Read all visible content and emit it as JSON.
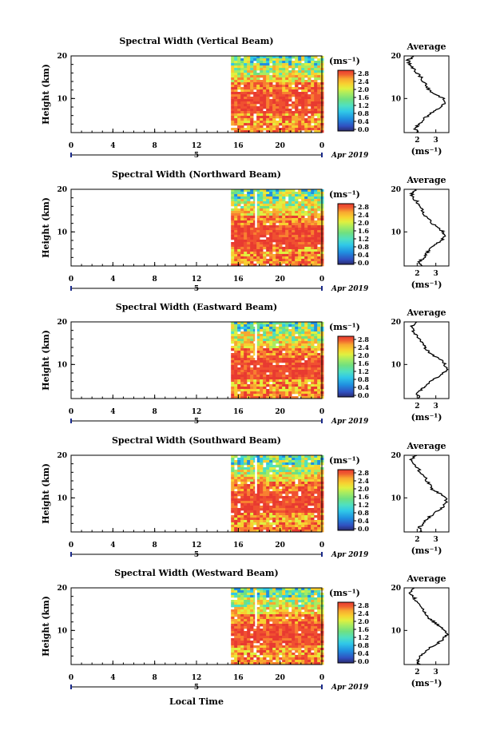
{
  "chart_data": [
    {
      "type": "heatmap",
      "title": "Spectral Width (Vertical Beam)",
      "ylabel": "Height (km)",
      "yticks": [
        "20",
        "10"
      ],
      "xticks": [
        "0",
        "4",
        "8",
        "12",
        "16",
        "20",
        "0"
      ],
      "day_label": "5",
      "date_label": "Apr 2019",
      "xlim": [
        0,
        24
      ],
      "ylim": [
        2,
        20
      ],
      "data_start_hour": 15.3,
      "colorbar_unit": "(ms⁻¹)",
      "colorbar_ticks": [
        "2.8",
        "2.4",
        "2.0",
        "1.6",
        "1.2",
        "0.8",
        "0.4",
        "0.0"
      ],
      "profile": {
        "title": "Average",
        "xlabel": "(ms⁻¹)",
        "xticks": [
          "2",
          "3"
        ],
        "xlim": [
          1.3,
          3.7
        ],
        "yticks": [
          "20",
          "10"
        ],
        "heights": [
          2,
          3,
          4,
          5,
          6,
          7,
          8,
          9,
          10,
          11,
          12,
          13,
          14,
          15,
          16,
          17,
          18,
          19,
          20
        ],
        "values": [
          2.0,
          1.9,
          2.1,
          2.3,
          2.6,
          2.9,
          3.3,
          3.5,
          3.4,
          3.0,
          2.6,
          2.5,
          2.3,
          2.2,
          2.0,
          1.8,
          1.6,
          1.5,
          1.9
        ]
      }
    },
    {
      "type": "heatmap",
      "title": "Spectral Width (Northward Beam)",
      "ylabel": "Height (km)",
      "yticks": [
        "20",
        "10"
      ],
      "xticks": [
        "0",
        "4",
        "8",
        "12",
        "16",
        "20",
        "0"
      ],
      "day_label": "5",
      "date_label": "Apr 2019",
      "xlim": [
        0,
        24
      ],
      "ylim": [
        2,
        20
      ],
      "data_start_hour": 15.3,
      "colorbar_unit": "(ms⁻¹)",
      "colorbar_ticks": [
        "2.8",
        "2.4",
        "2.0",
        "1.6",
        "1.2",
        "0.8",
        "0.4",
        "0.0"
      ],
      "profile": {
        "title": "Average",
        "xlabel": "(ms⁻¹)",
        "xticks": [
          "2",
          "3"
        ],
        "xlim": [
          1.3,
          3.7
        ],
        "yticks": [
          "20",
          "10"
        ],
        "heights": [
          2,
          3,
          4,
          5,
          6,
          7,
          8,
          9,
          10,
          11,
          12,
          13,
          14,
          15,
          16,
          17,
          18,
          19,
          20
        ],
        "values": [
          2.3,
          2.1,
          2.4,
          2.5,
          2.7,
          3.0,
          3.3,
          3.5,
          3.4,
          3.1,
          2.8,
          2.6,
          2.4,
          2.3,
          2.2,
          2.0,
          1.8,
          1.7,
          1.9
        ]
      }
    },
    {
      "type": "heatmap",
      "title": "Spectral Width (Eastward Beam)",
      "ylabel": "Height (km)",
      "yticks": [
        "20",
        "10"
      ],
      "xticks": [
        "0",
        "4",
        "8",
        "12",
        "16",
        "20",
        "0"
      ],
      "day_label": "5",
      "date_label": "Apr 2019",
      "xlim": [
        0,
        24
      ],
      "ylim": [
        2,
        20
      ],
      "data_start_hour": 15.3,
      "colorbar_unit": "(ms⁻¹)",
      "colorbar_ticks": [
        "2.8",
        "2.4",
        "2.0",
        "1.6",
        "1.2",
        "0.8",
        "0.4",
        "0.0"
      ],
      "profile": {
        "title": "Average",
        "xlabel": "(ms⁻¹)",
        "xticks": [
          "2",
          "3"
        ],
        "xlim": [
          1.3,
          3.7
        ],
        "yticks": [
          "20",
          "10"
        ],
        "heights": [
          2,
          3,
          4,
          5,
          6,
          7,
          8,
          9,
          10,
          11,
          12,
          13,
          14,
          15,
          16,
          17,
          18,
          19,
          20
        ],
        "values": [
          2.1,
          2.0,
          2.2,
          2.4,
          2.7,
          3.1,
          3.4,
          3.6,
          3.5,
          3.3,
          2.9,
          2.6,
          2.4,
          2.3,
          2.1,
          1.9,
          1.8,
          1.7,
          1.9
        ]
      }
    },
    {
      "type": "heatmap",
      "title": "Spectral Width (Southward Beam)",
      "ylabel": "Height (km)",
      "yticks": [
        "20",
        "10"
      ],
      "xticks": [
        "0",
        "4",
        "8",
        "12",
        "16",
        "20",
        "0"
      ],
      "day_label": "5",
      "date_label": "Apr 2019",
      "xlim": [
        0,
        24
      ],
      "ylim": [
        2,
        20
      ],
      "data_start_hour": 15.3,
      "colorbar_unit": "(ms⁻¹)",
      "colorbar_ticks": [
        "2.8",
        "2.4",
        "2.0",
        "1.6",
        "1.2",
        "0.8",
        "0.4",
        "0.0"
      ],
      "profile": {
        "title": "Average",
        "xlabel": "(ms⁻¹)",
        "xticks": [
          "2",
          "3"
        ],
        "xlim": [
          1.3,
          3.7
        ],
        "yticks": [
          "20",
          "10"
        ],
        "heights": [
          2,
          3,
          4,
          5,
          6,
          7,
          8,
          9,
          10,
          11,
          12,
          13,
          14,
          15,
          16,
          17,
          18,
          19,
          20
        ],
        "values": [
          2.2,
          2.1,
          2.3,
          2.5,
          2.8,
          3.1,
          3.4,
          3.6,
          3.5,
          3.2,
          2.8,
          2.7,
          2.5,
          2.4,
          2.2,
          2.0,
          1.8,
          1.7,
          1.9
        ]
      }
    },
    {
      "type": "heatmap",
      "title": "Spectral Width (Westward Beam)",
      "ylabel": "Height (km)",
      "yticks": [
        "20",
        "10"
      ],
      "xticks": [
        "0",
        "4",
        "8",
        "12",
        "16",
        "20",
        "0"
      ],
      "day_label": "5",
      "date_label": "Apr 2019",
      "xlabel": "Local Time",
      "xlim": [
        0,
        24
      ],
      "ylim": [
        2,
        20
      ],
      "data_start_hour": 15.3,
      "colorbar_unit": "(ms⁻¹)",
      "colorbar_ticks": [
        "2.8",
        "2.4",
        "2.0",
        "1.6",
        "1.2",
        "0.8",
        "0.4",
        "0.0"
      ],
      "profile": {
        "title": "Average",
        "xlabel": "(ms⁻¹)",
        "xticks": [
          "2",
          "3"
        ],
        "xlim": [
          1.3,
          3.7
        ],
        "yticks": [
          "20",
          "10"
        ],
        "heights": [
          2,
          3,
          4,
          5,
          6,
          7,
          8,
          9,
          10,
          11,
          12,
          13,
          14,
          15,
          16,
          17,
          18,
          19,
          20
        ],
        "values": [
          2.1,
          2.0,
          2.2,
          2.4,
          2.7,
          3.1,
          3.4,
          3.6,
          3.5,
          3.2,
          2.9,
          2.6,
          2.4,
          2.3,
          2.1,
          1.9,
          1.8,
          1.6,
          1.9
        ]
      }
    }
  ],
  "colors": {
    "colormap": [
      "#2a2a6e",
      "#3050c0",
      "#2090e0",
      "#30c8e8",
      "#50e0c0",
      "#70e080",
      "#a8ec60",
      "#e0f040",
      "#f8d030",
      "#f8a830",
      "#f88030",
      "#f05030",
      "#e83a30"
    ]
  }
}
